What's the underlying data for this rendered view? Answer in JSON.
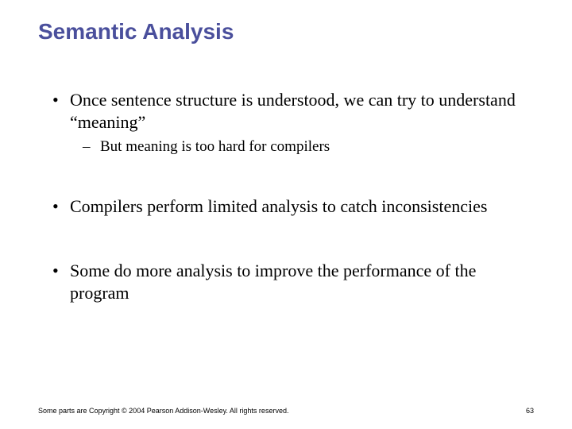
{
  "colors": {
    "title": "#4a4f9c",
    "body_text": "#000000",
    "background": "#ffffff"
  },
  "typography": {
    "title_font": "Arial",
    "title_fontsize_pt": 28,
    "title_weight": "bold",
    "body_font": "Times New Roman",
    "body_fontsize_pt": 22,
    "sub_fontsize_pt": 19,
    "footer_fontsize_pt": 9
  },
  "title": "Semantic Analysis",
  "bullets": [
    {
      "text": "Once sentence structure is understood, we can try to understand “meaning”",
      "sub": [
        {
          "text": "But meaning is too hard for compilers"
        }
      ]
    },
    {
      "text": "Compilers perform limited analysis to catch inconsistencies",
      "sub": []
    },
    {
      "text": "Some do more analysis to improve the performance of the program",
      "sub": []
    }
  ],
  "markers": {
    "l1": "•",
    "l2": "–"
  },
  "footer": {
    "copyright": "Some parts are Copyright © 2004 Pearson Addison-Wesley. All rights reserved.",
    "page": "63"
  }
}
